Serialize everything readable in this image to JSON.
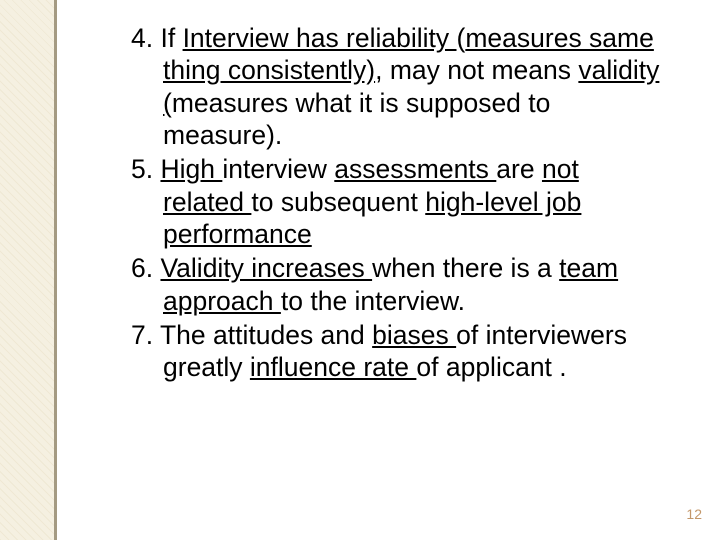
{
  "slide": {
    "background_color": "#ffffff",
    "side_band_color": "#f5f0e1",
    "side_band_pattern_color": "#efe8d4",
    "divider_color": "#a49a82",
    "text_color": "#000000",
    "font_family": "Arial",
    "font_size_pt": 20,
    "page_number_color": "#c3976a",
    "page_number_fontsize_pt": 10
  },
  "items": [
    {
      "number": "4.",
      "segments": [
        {
          "t": "If ",
          "u": false
        },
        {
          "t": "Interview has reliability ",
          "u": true
        },
        {
          "t": "(",
          "u": false
        },
        {
          "t": "measures same thing consistently)",
          "u": true
        },
        {
          "t": ", may not means ",
          "u": false
        },
        {
          "t": "validity (",
          "u": true
        },
        {
          "t": "measures what it is supposed to measure).",
          "u": false
        }
      ]
    },
    {
      "number": "5.",
      "segments": [
        {
          "t": " High ",
          "u": true
        },
        {
          "t": "interview ",
          "u": false
        },
        {
          "t": "assessments ",
          "u": true
        },
        {
          "t": "are ",
          "u": false
        },
        {
          "t": "not related ",
          "u": true
        },
        {
          "t": "to subsequent ",
          "u": false
        },
        {
          "t": "high-level job performance",
          "u": true
        }
      ]
    },
    {
      "number": "6.",
      "segments": [
        {
          "t": " ",
          "u": false
        },
        {
          "t": "Validity increases ",
          "u": true
        },
        {
          "t": "when there is a ",
          "u": false
        },
        {
          "t": "team approach ",
          "u": true
        },
        {
          "t": "to the interview.",
          "u": false
        }
      ]
    },
    {
      "number": "7.",
      "segments": [
        {
          "t": "The attitudes and ",
          "u": false
        },
        {
          "t": "biases ",
          "u": true
        },
        {
          "t": "of interviewers greatly ",
          "u": false
        },
        {
          "t": "influence rate ",
          "u": true
        },
        {
          "t": "of applicant .",
          "u": false
        }
      ]
    }
  ],
  "page_number": "12"
}
